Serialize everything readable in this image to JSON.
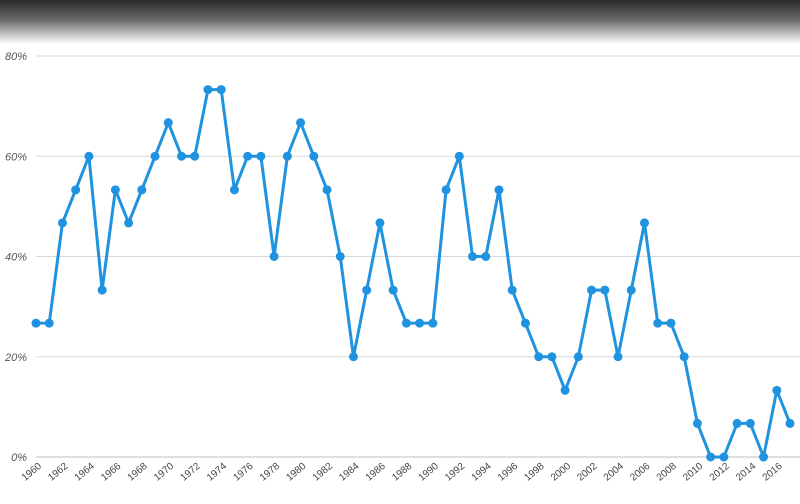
{
  "header": {
    "title": ""
  },
  "chart_data": {
    "type": "line",
    "title": "",
    "xlabel": "",
    "ylabel": "",
    "x": [
      1960,
      1961,
      1962,
      1963,
      1964,
      1965,
      1966,
      1967,
      1968,
      1969,
      1970,
      1971,
      1972,
      1973,
      1974,
      1975,
      1976,
      1977,
      1978,
      1979,
      1980,
      1981,
      1982,
      1983,
      1984,
      1985,
      1986,
      1987,
      1988,
      1989,
      1990,
      1991,
      1992,
      1993,
      1994,
      1995,
      1996,
      1997,
      1998,
      1999,
      2000,
      2001,
      2002,
      2003,
      2004,
      2005,
      2006,
      2007,
      2008,
      2009,
      2010,
      2011,
      2012,
      2013,
      2014,
      2015,
      2016,
      2017
    ],
    "x_tick_labels": [
      "1960",
      "1962",
      "1964",
      "1966",
      "1968",
      "1970",
      "1972",
      "1974",
      "1976",
      "1978",
      "1980",
      "1982",
      "1984",
      "1986",
      "1988",
      "1990",
      "1992",
      "1994",
      "1996",
      "1998",
      "2000",
      "2002",
      "2004",
      "2006",
      "2008",
      "2010",
      "2012",
      "2014",
      "2016"
    ],
    "y_tick_labels": [
      "0%",
      "20%",
      "40%",
      "60%",
      "80%"
    ],
    "ylim": [
      0,
      80
    ],
    "grid": true,
    "legend": "none",
    "series": [
      {
        "values": [
          26.7,
          26.7,
          46.7,
          53.3,
          60.0,
          33.3,
          53.3,
          46.7,
          53.3,
          60.0,
          66.7,
          60.0,
          60.0,
          73.3,
          73.3,
          53.3,
          60.0,
          60.0,
          40.0,
          60.0,
          66.7,
          60.0,
          53.3,
          40.0,
          20.0,
          33.3,
          46.7,
          33.3,
          26.7,
          26.7,
          26.7,
          53.3,
          60.0,
          40.0,
          40.0,
          53.3,
          33.3,
          26.7,
          20.0,
          20.0,
          13.3,
          20.0,
          33.3,
          33.3,
          20.0,
          33.3,
          46.7,
          26.7,
          26.7,
          20.0,
          6.7,
          0.0,
          0.0,
          6.7,
          6.7,
          0.0,
          13.3,
          6.7
        ],
        "color": "#1f93df"
      }
    ],
    "colors": {
      "line": "#1f93df",
      "grid": "#d9d9d9",
      "axis": "#bfbfbf"
    }
  }
}
